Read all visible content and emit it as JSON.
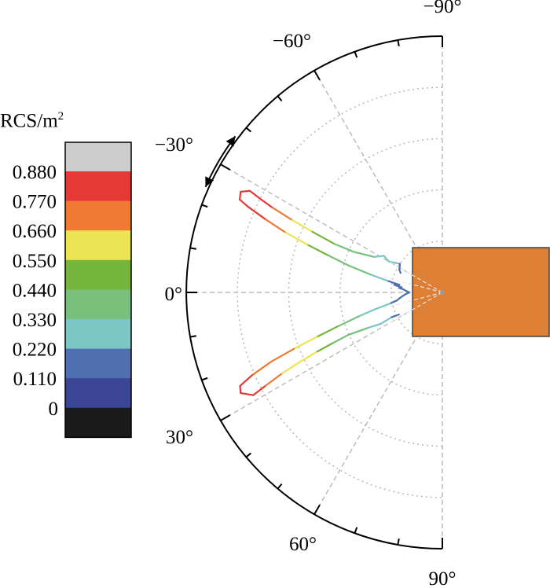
{
  "chart_data": {
    "type": "polar-line",
    "angle_unit": "degrees",
    "angle_range": [
      -90,
      90
    ],
    "angle_ticks": [
      -90,
      -60,
      -30,
      0,
      30,
      60,
      90
    ],
    "angle_tick_labels": [
      "−90°",
      "−60°",
      "−30°",
      "0°",
      "30°",
      "60°",
      "90°"
    ],
    "radial_rings": [
      0.2,
      0.4,
      0.6,
      0.8,
      1.0
    ],
    "radial_range": [
      0,
      1.0
    ],
    "grid": true,
    "colorbar": {
      "title": "RCS/m",
      "title_sup": "2",
      "tick_labels": [
        "0.880",
        "0.770",
        "0.660",
        "0.550",
        "0.440",
        "0.330",
        "0.220",
        "0.110",
        "0"
      ],
      "tick_values": [
        0.88,
        0.77,
        0.66,
        0.55,
        0.44,
        0.33,
        0.22,
        0.11,
        0
      ],
      "colors_top_to_bottom": [
        "#cccccc",
        "#e53935",
        "#f07a32",
        "#ebe555",
        "#75b53c",
        "#78c07c",
        "#7cc7c4",
        "#4f6fb0",
        "#3a4596",
        "#1a1a1a"
      ]
    },
    "series": [
      {
        "curve": "upper-lobe",
        "points": [
          [
            -0.5,
            0.13
          ],
          [
            -2,
            0.14
          ],
          [
            -4,
            0.15
          ],
          [
            -6,
            0.17
          ],
          [
            -7,
            0.16
          ],
          [
            -9,
            0.19
          ],
          [
            -10,
            0.17
          ],
          [
            -12,
            0.22
          ],
          [
            -14,
            0.29
          ],
          [
            -16,
            0.38
          ],
          [
            -18,
            0.47
          ],
          [
            -19.5,
            0.56
          ],
          [
            -21,
            0.66
          ],
          [
            -22.5,
            0.75
          ],
          [
            -23.8,
            0.83
          ],
          [
            -24.6,
            0.87
          ],
          [
            -26.5,
            0.88
          ],
          [
            -27.8,
            0.85
          ],
          [
            -27.2,
            0.8
          ],
          [
            -26.5,
            0.74
          ],
          [
            -25.7,
            0.65
          ],
          [
            -25,
            0.56
          ],
          [
            -24.2,
            0.46
          ],
          [
            -24.6,
            0.38
          ],
          [
            -27.5,
            0.3
          ],
          [
            -32,
            0.27
          ],
          [
            -30,
            0.24
          ],
          [
            -34,
            0.2
          ],
          [
            -28,
            0.19
          ],
          [
            -25,
            0.18
          ]
        ]
      },
      {
        "curve": "lower-lobe",
        "points": [
          [
            0.5,
            0.13
          ],
          [
            2,
            0.14
          ],
          [
            4,
            0.15
          ],
          [
            6,
            0.16
          ],
          [
            8,
            0.17
          ],
          [
            10,
            0.18
          ],
          [
            12,
            0.21
          ],
          [
            14,
            0.27
          ],
          [
            16,
            0.34
          ],
          [
            18,
            0.43
          ],
          [
            19.5,
            0.52
          ],
          [
            20.8,
            0.62
          ],
          [
            22,
            0.72
          ],
          [
            23.5,
            0.81
          ],
          [
            24.8,
            0.87
          ],
          [
            26.5,
            0.88
          ],
          [
            28.5,
            0.84
          ],
          [
            27.8,
            0.78
          ],
          [
            26.8,
            0.7
          ],
          [
            26,
            0.62
          ],
          [
            25.3,
            0.54
          ],
          [
            24.8,
            0.47
          ],
          [
            24.3,
            0.4
          ],
          [
            25.5,
            0.32
          ],
          [
            27,
            0.27
          ],
          [
            26,
            0.22
          ],
          [
            27,
            0.19
          ]
        ]
      }
    ]
  },
  "annotation": {
    "rotation_arrow_icon": "double-arrow-icon"
  },
  "target_block_color": "#dd7f35"
}
